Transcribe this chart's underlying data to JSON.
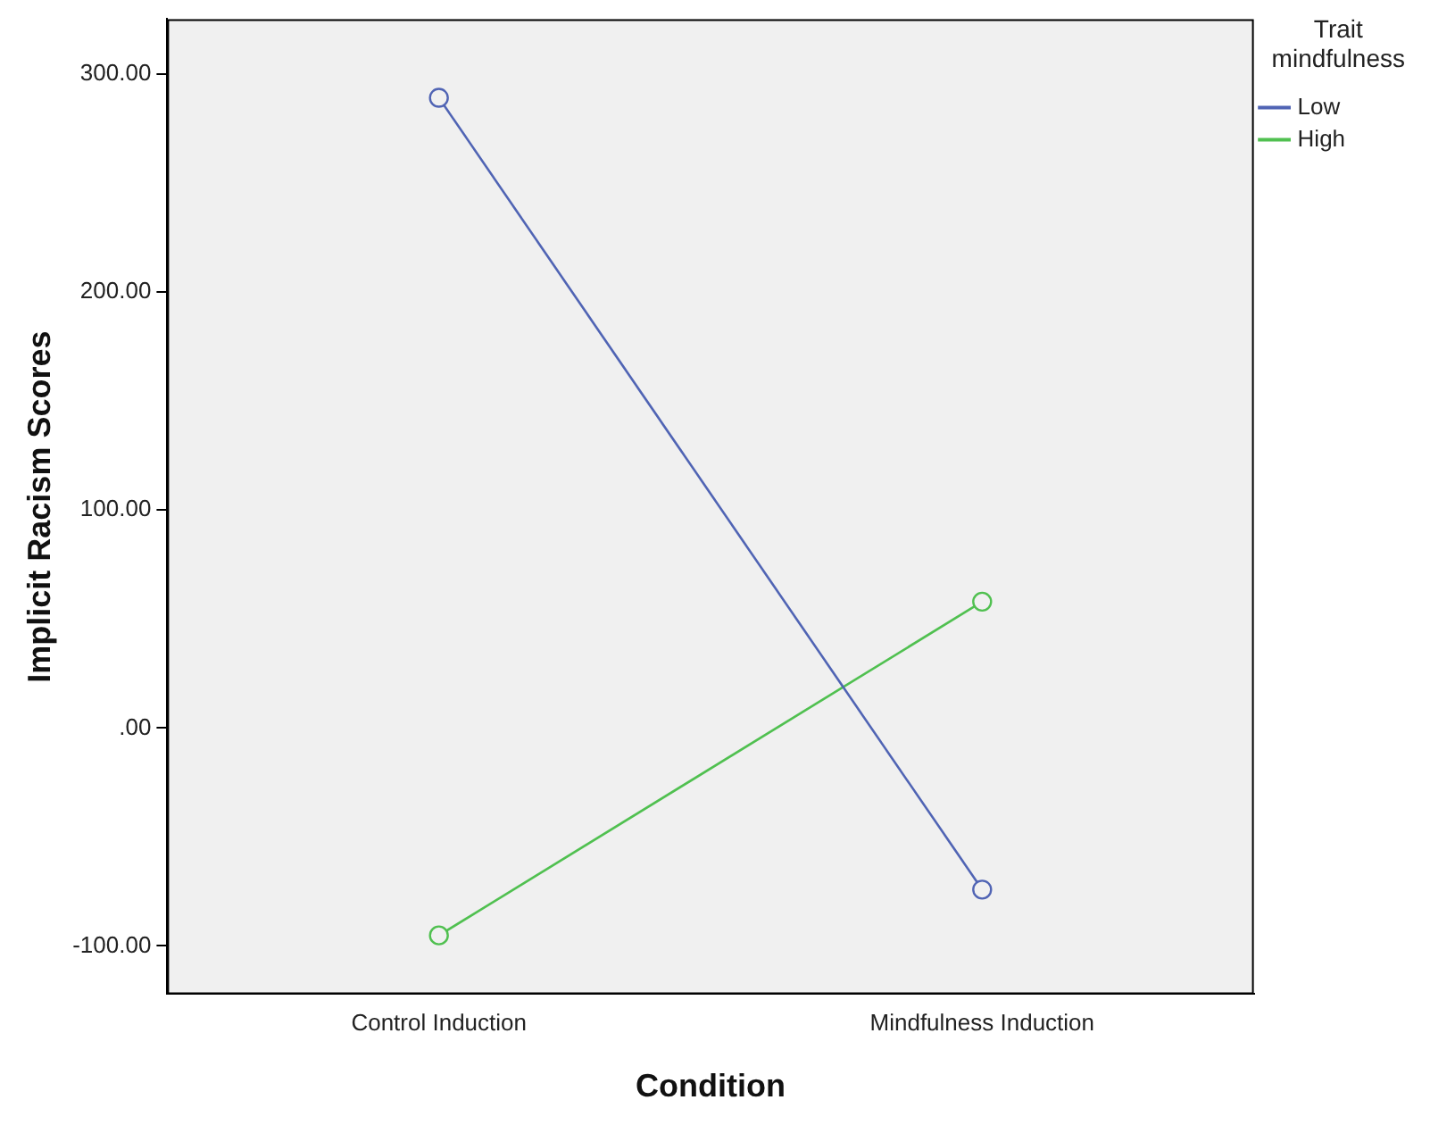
{
  "chart_data": {
    "type": "line",
    "xlabel": "Condition",
    "ylabel": "Implicit Racism Scores",
    "legend_title": "Trait mindfulness",
    "categories": [
      "Control Induction",
      "Mindfulness Induction"
    ],
    "series": [
      {
        "name": "Low",
        "color": "#5064b4",
        "values": [
          289,
          -74
        ]
      },
      {
        "name": "High",
        "color": "#50c050",
        "values": [
          -95,
          58
        ]
      }
    ],
    "ylim": [
      -122,
      325
    ],
    "yticks": [
      {
        "value": -100,
        "label": "-100.00"
      },
      {
        "value": 0,
        "label": ".00"
      },
      {
        "value": 100,
        "label": "100.00"
      },
      {
        "value": 200,
        "label": "200.00"
      },
      {
        "value": 300,
        "label": "300.00"
      }
    ],
    "marker": "circle",
    "line_style": "solid",
    "grid": false,
    "legend": "top right"
  }
}
